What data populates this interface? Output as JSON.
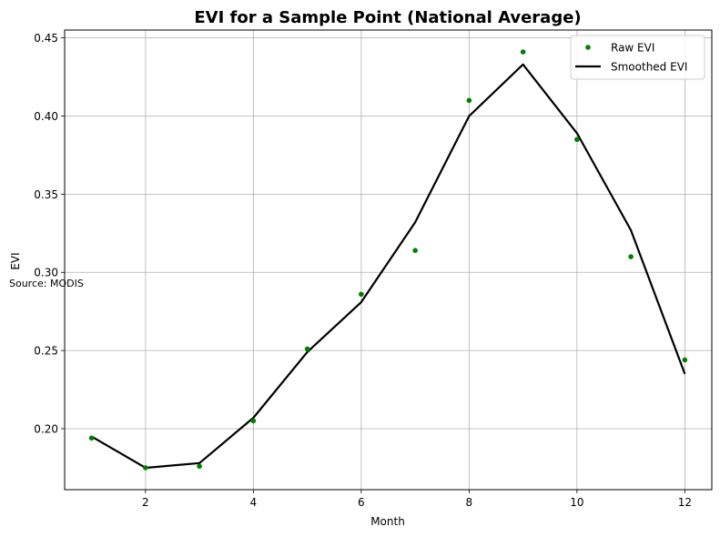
{
  "chart_data": {
    "type": "line",
    "title": "EVI for a Sample Point (National Average)",
    "xlabel": "Month",
    "ylabel": "EVI",
    "annotation": "Source: MODIS",
    "xlim": [
      0.5,
      12.5
    ],
    "ylim": [
      0.161,
      0.455
    ],
    "xticks": [
      2,
      4,
      6,
      8,
      10,
      12
    ],
    "yticks": [
      0.2,
      0.25,
      0.3,
      0.35,
      0.4,
      0.45
    ],
    "grid": true,
    "legend_position": "top-right",
    "x": [
      1,
      2,
      3,
      4,
      5,
      6,
      7,
      8,
      9,
      10,
      11,
      12
    ],
    "series": [
      {
        "name": "Raw EVI",
        "style": "markers",
        "color": "#008000",
        "values": [
          0.194,
          0.175,
          0.176,
          0.205,
          0.251,
          0.286,
          0.314,
          0.41,
          0.441,
          0.385,
          0.31,
          0.244
        ]
      },
      {
        "name": "Smoothed EVI",
        "style": "line",
        "color": "#000000",
        "values": [
          0.195,
          0.175,
          0.178,
          0.207,
          0.249,
          0.281,
          0.332,
          0.4,
          0.433,
          0.389,
          0.327,
          0.235
        ]
      }
    ]
  }
}
